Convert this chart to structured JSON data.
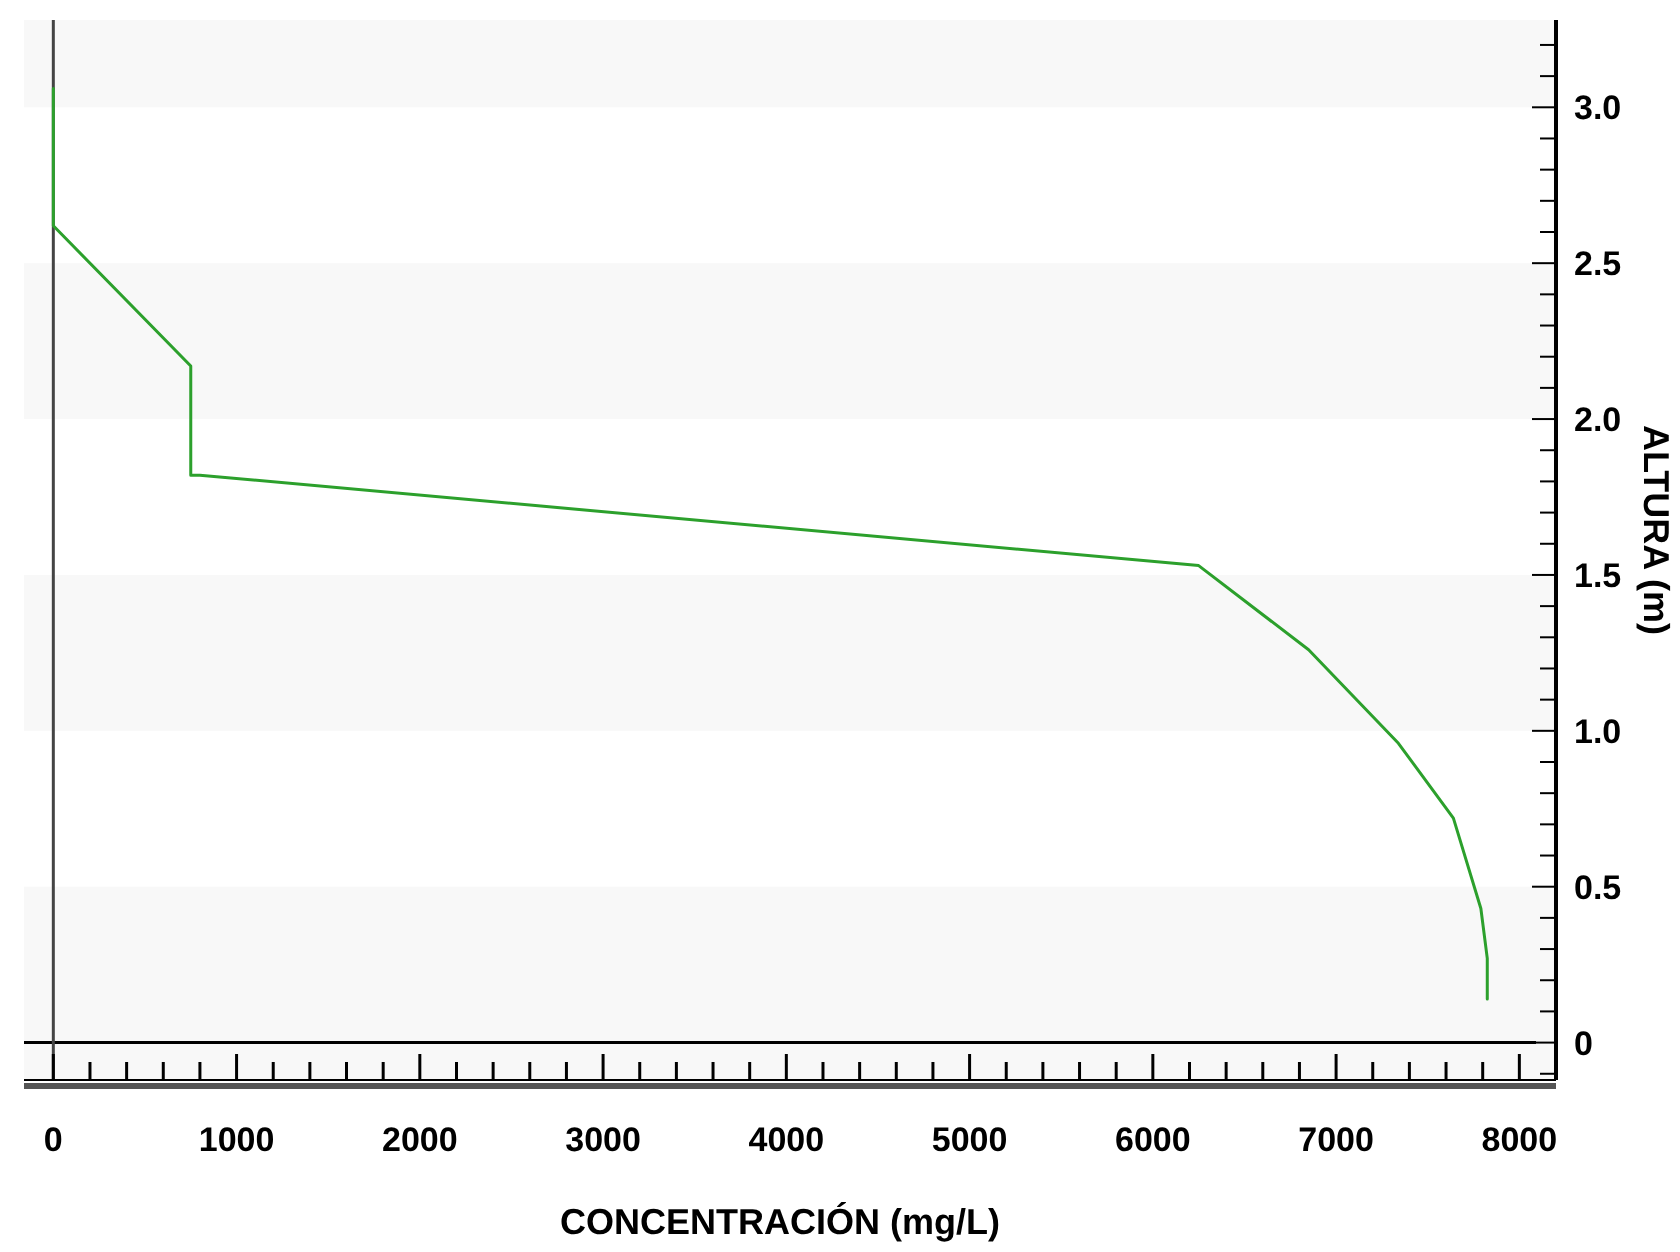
{
  "chart_data": {
    "type": "line",
    "xlabel": "CONCENTRACIÓN (mg/L)",
    "ylabel": "ALTURA (m)",
    "x": [
      0,
      0,
      750,
      750,
      800,
      6250,
      6850,
      7340,
      7640,
      7790,
      7825,
      7825
    ],
    "series": [
      {
        "color": "#2ca02c",
        "values": [
          3.06,
          2.62,
          2.17,
          1.82,
          1.82,
          1.53,
          1.26,
          0.96,
          0.72,
          0.43,
          0.27,
          0.14
        ]
      }
    ],
    "xlim": [
      -160,
      8200
    ],
    "ylim": [
      -0.12,
      3.28
    ],
    "xticks": [
      0,
      {
        "value": 200,
        "label": null
      },
      {
        "value": 400,
        "label": null
      },
      {
        "value": 600,
        "label": null
      },
      {
        "value": 800,
        "label": null
      },
      1000,
      {
        "value": 1200,
        "label": null
      },
      {
        "value": 1400,
        "label": null
      },
      {
        "value": 1600,
        "label": null
      },
      {
        "value": 1800,
        "label": null
      },
      2000,
      {
        "value": 2200,
        "label": null
      },
      {
        "value": 2400,
        "label": null
      },
      {
        "value": 2600,
        "label": null
      },
      {
        "value": 2800,
        "label": null
      },
      3000,
      {
        "value": 3200,
        "label": null
      },
      {
        "value": 3400,
        "label": null
      },
      {
        "value": 3600,
        "label": null
      },
      {
        "value": 3800,
        "label": null
      },
      4000,
      {
        "value": 4200,
        "label": null
      },
      {
        "value": 4400,
        "label": null
      },
      {
        "value": 4600,
        "label": null
      },
      {
        "value": 4800,
        "label": null
      },
      5000,
      {
        "value": 5200,
        "label": null
      },
      {
        "value": 5400,
        "label": null
      },
      {
        "value": 5600,
        "label": null
      },
      {
        "value": 5800,
        "label": null
      },
      6000,
      {
        "value": 6200,
        "label": null
      },
      {
        "value": 6400,
        "label": null
      },
      {
        "value": 6600,
        "label": null
      },
      {
        "value": 6800,
        "label": null
      },
      7000,
      {
        "value": 7200,
        "label": null
      },
      {
        "value": 7400,
        "label": null
      },
      {
        "value": 7600,
        "label": null
      },
      {
        "value": 7800,
        "label": null
      },
      8000,
      {
        "value": 8200,
        "label": null
      }
    ],
    "yticks": [
      {
        "value": -0.1,
        "label": null
      },
      0,
      {
        "value": 0.1,
        "label": null
      },
      {
        "value": 0.2,
        "label": null
      },
      {
        "value": 0.3,
        "label": null
      },
      {
        "value": 0.4,
        "label": null
      },
      0.5,
      {
        "value": 0.6,
        "label": null
      },
      {
        "value": 0.7,
        "label": null
      },
      {
        "value": 0.8,
        "label": null
      },
      {
        "value": 0.9,
        "label": null
      },
      {
        "value": 1.0,
        "label": "1.0"
      },
      {
        "value": 1.1,
        "label": null
      },
      {
        "value": 1.2,
        "label": null
      },
      {
        "value": 1.3,
        "label": null
      },
      {
        "value": 1.4,
        "label": null
      },
      1.5,
      {
        "value": 1.6,
        "label": null
      },
      {
        "value": 1.7,
        "label": null
      },
      {
        "value": 1.8,
        "label": null
      },
      {
        "value": 1.9,
        "label": null
      },
      {
        "value": 2.0,
        "label": "2.0"
      },
      {
        "value": 2.1,
        "label": null
      },
      {
        "value": 2.2,
        "label": null
      },
      {
        "value": 2.3,
        "label": null
      },
      {
        "value": 2.4,
        "label": null
      },
      2.5,
      {
        "value": 2.6,
        "label": null
      },
      {
        "value": 2.7,
        "label": null
      },
      {
        "value": 2.8,
        "label": null
      },
      {
        "value": 2.9,
        "label": null
      },
      {
        "value": 3.0,
        "label": "3.0"
      },
      {
        "value": 3.1,
        "label": null
      },
      {
        "value": 3.2,
        "label": null
      }
    ],
    "bands": [
      {
        "axis": "y",
        "from": -0.12,
        "to": 0.5,
        "color": "#f8f8f8"
      },
      {
        "axis": "y",
        "from": 1.0,
        "to": 1.5,
        "color": "#f8f8f8"
      },
      {
        "axis": "y",
        "from": 2.0,
        "to": 2.5,
        "color": "#f8f8f8"
      },
      {
        "axis": "y",
        "from": 3.0,
        "to": 3.28,
        "color": "#f8f8f8"
      }
    ],
    "ref_lines": [
      {
        "axis": "y",
        "value": 0,
        "color": "#000000"
      },
      {
        "axis": "x",
        "value": 0,
        "color": "#444444"
      }
    ],
    "grid": false,
    "marker": "none",
    "line_style": "solid"
  }
}
